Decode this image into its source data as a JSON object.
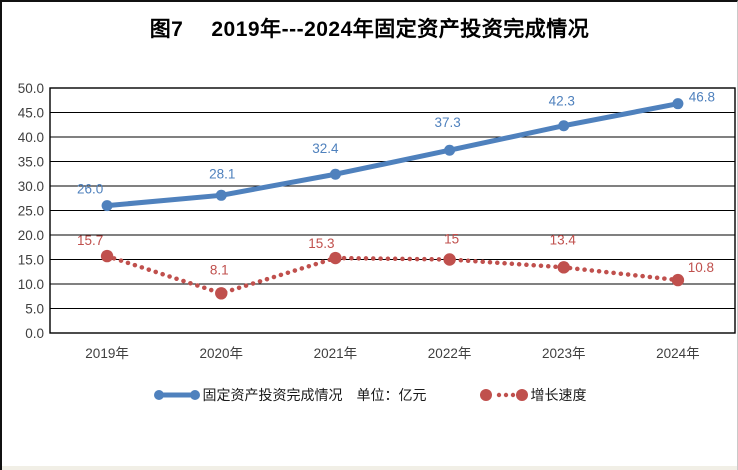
{
  "title": {
    "prefix": "图7",
    "main": "2019年---2024年固定资产投资完成情况"
  },
  "chart_data": {
    "type": "line",
    "title": "图7 2019年---2024年固定资产投资完成情况",
    "categories": [
      "2019年",
      "2020年",
      "2021年",
      "2022年",
      "2023年",
      "2024年"
    ],
    "series": [
      {
        "name": "固定资产投资完成情况　单位：亿元",
        "color": "#4f81bd",
        "style": "solid",
        "values": [
          26.0,
          28.1,
          32.4,
          37.3,
          42.3,
          46.8
        ],
        "labels": [
          "26.0",
          "28.1",
          "32.4",
          "37.3",
          "42.3",
          "46.8"
        ]
      },
      {
        "name": "增长速度",
        "color": "#c0504d",
        "style": "dotted",
        "values": [
          15.7,
          8.1,
          15.3,
          15,
          13.4,
          10.8
        ],
        "labels": [
          "15.7",
          "8.1",
          "15.3",
          "15",
          "13.4",
          "10.8"
        ]
      }
    ],
    "ylim": [
      0,
      50
    ],
    "ytick_step": 5,
    "yticks": [
      "50.0",
      "45.0",
      "40.0",
      "35.0",
      "30.0",
      "25.0",
      "20.0",
      "15.0",
      "10.0",
      "5.0",
      "0.0"
    ],
    "grid": true,
    "legend_position": "bottom",
    "axis_text_color": "#3f3f3f",
    "gridline_color": "#000000"
  }
}
